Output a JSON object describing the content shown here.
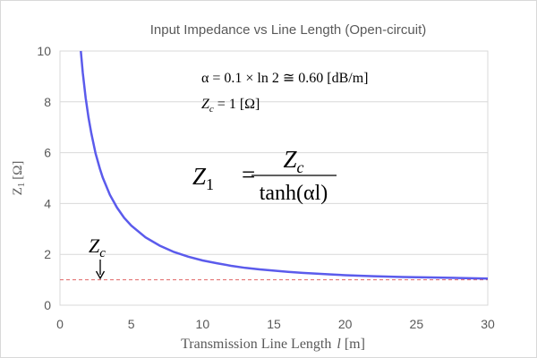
{
  "chart_data": {
    "type": "line",
    "title": "Input Impedance vs  Line Length (Open-circuit)",
    "xlabel": "Transmission Line Length",
    "xlabel_symbol": "l",
    "xlabel_unit": "[m]",
    "ylabel": "Z",
    "ylabel_sub": "1",
    "ylabel_unit": "[Ω]",
    "xlim": [
      0,
      30
    ],
    "ylim": [
      0,
      10
    ],
    "x_ticks": [
      "0",
      "5",
      "10",
      "15",
      "20",
      "25",
      "30"
    ],
    "y_ticks": [
      "0",
      "2",
      "4",
      "6",
      "8",
      "10"
    ],
    "grid": "horizontal",
    "legend": "none",
    "series": [
      {
        "x": [
          1.46,
          1.6,
          1.8,
          2.0,
          2.2,
          2.5,
          2.8,
          3.0,
          3.5,
          4.0,
          4.5,
          5.0,
          6.0,
          7.0,
          8.0,
          9.0,
          10.0,
          11.0,
          12.0,
          13.0,
          14.0,
          15.0,
          16.0,
          17.0,
          18.0,
          19.0,
          20.0,
          22.0,
          24.0,
          26.0,
          28.0,
          30.0
        ],
        "values": [
          10.0,
          9.14,
          8.16,
          7.38,
          6.75,
          5.97,
          5.37,
          5.02,
          4.34,
          3.84,
          3.44,
          3.13,
          2.67,
          2.34,
          2.09,
          1.91,
          1.76,
          1.65,
          1.55,
          1.47,
          1.41,
          1.36,
          1.31,
          1.27,
          1.24,
          1.21,
          1.18,
          1.14,
          1.11,
          1.09,
          1.07,
          1.05
        ]
      }
    ],
    "reference_line": {
      "y": 1,
      "label": "Z",
      "label_sub": "c"
    },
    "annotations": {
      "alpha_line": {
        "lhs": "α = 0.1 × ln 2 ≅ 0.60 [dB/m]"
      },
      "zc_line": {
        "sym": "Z",
        "sub": "c",
        "rest": " = 1 [Ω]"
      },
      "formula": {
        "lhs": "Z",
        "lhs_sub": "1",
        "eq": "=",
        "num": "Z",
        "num_sub": "c",
        "den": "tanh(αl)"
      }
    }
  },
  "colors": {
    "curve": "#5b5bec",
    "reference": "#e06666",
    "grid": "#d9d9d9",
    "text": "#595959"
  }
}
